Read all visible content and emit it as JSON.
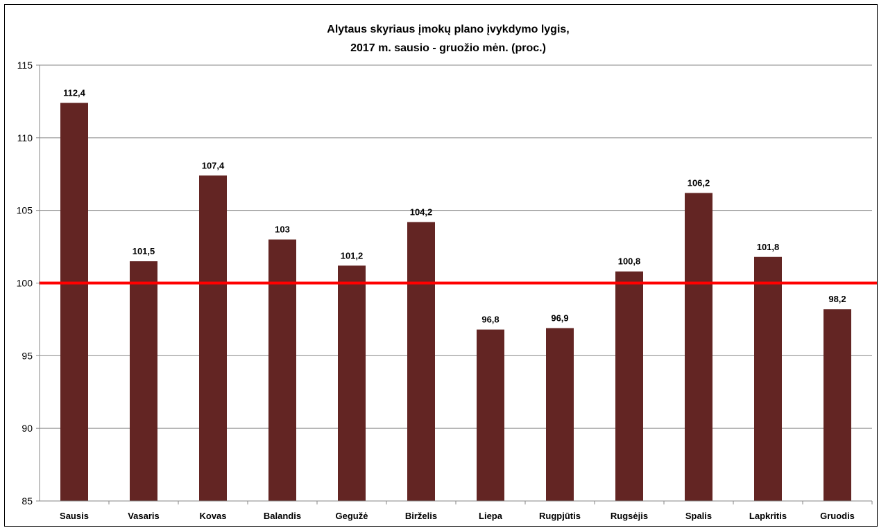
{
  "chart_data": {
    "type": "bar",
    "title": "Alytaus skyriaus įmokų plano įvykdymo lygis,",
    "subtitle": "2017 m. sausio - gruožio mėn. (proc.)",
    "categories": [
      "Sausis",
      "Vasaris",
      "Kovas",
      "Balandis",
      "Gegužė",
      "Birželis",
      "Liepa",
      "Rugpjūtis",
      "Rugsėjis",
      "Spalis",
      "Lapkritis",
      "Gruodis"
    ],
    "values": [
      112.4,
      101.5,
      107.4,
      103,
      101.2,
      104.2,
      96.8,
      96.9,
      100.8,
      106.2,
      101.8,
      98.2
    ],
    "value_labels": [
      "112,4",
      "101,5",
      "107,4",
      "103",
      "101,2",
      "104,2",
      "96,8",
      "96,9",
      "100,8",
      "106,2",
      "101,8",
      "98,2"
    ],
    "xlabel": "",
    "ylabel": "",
    "ylim": [
      85,
      115
    ],
    "yticks": [
      85,
      90,
      95,
      100,
      105,
      110,
      115
    ],
    "grid": true,
    "legend": "none",
    "reference_line": 100,
    "colors": {
      "bar": "#632523",
      "reference_line": "#ff0000",
      "grid": "#868686",
      "axis": "#868686"
    }
  }
}
